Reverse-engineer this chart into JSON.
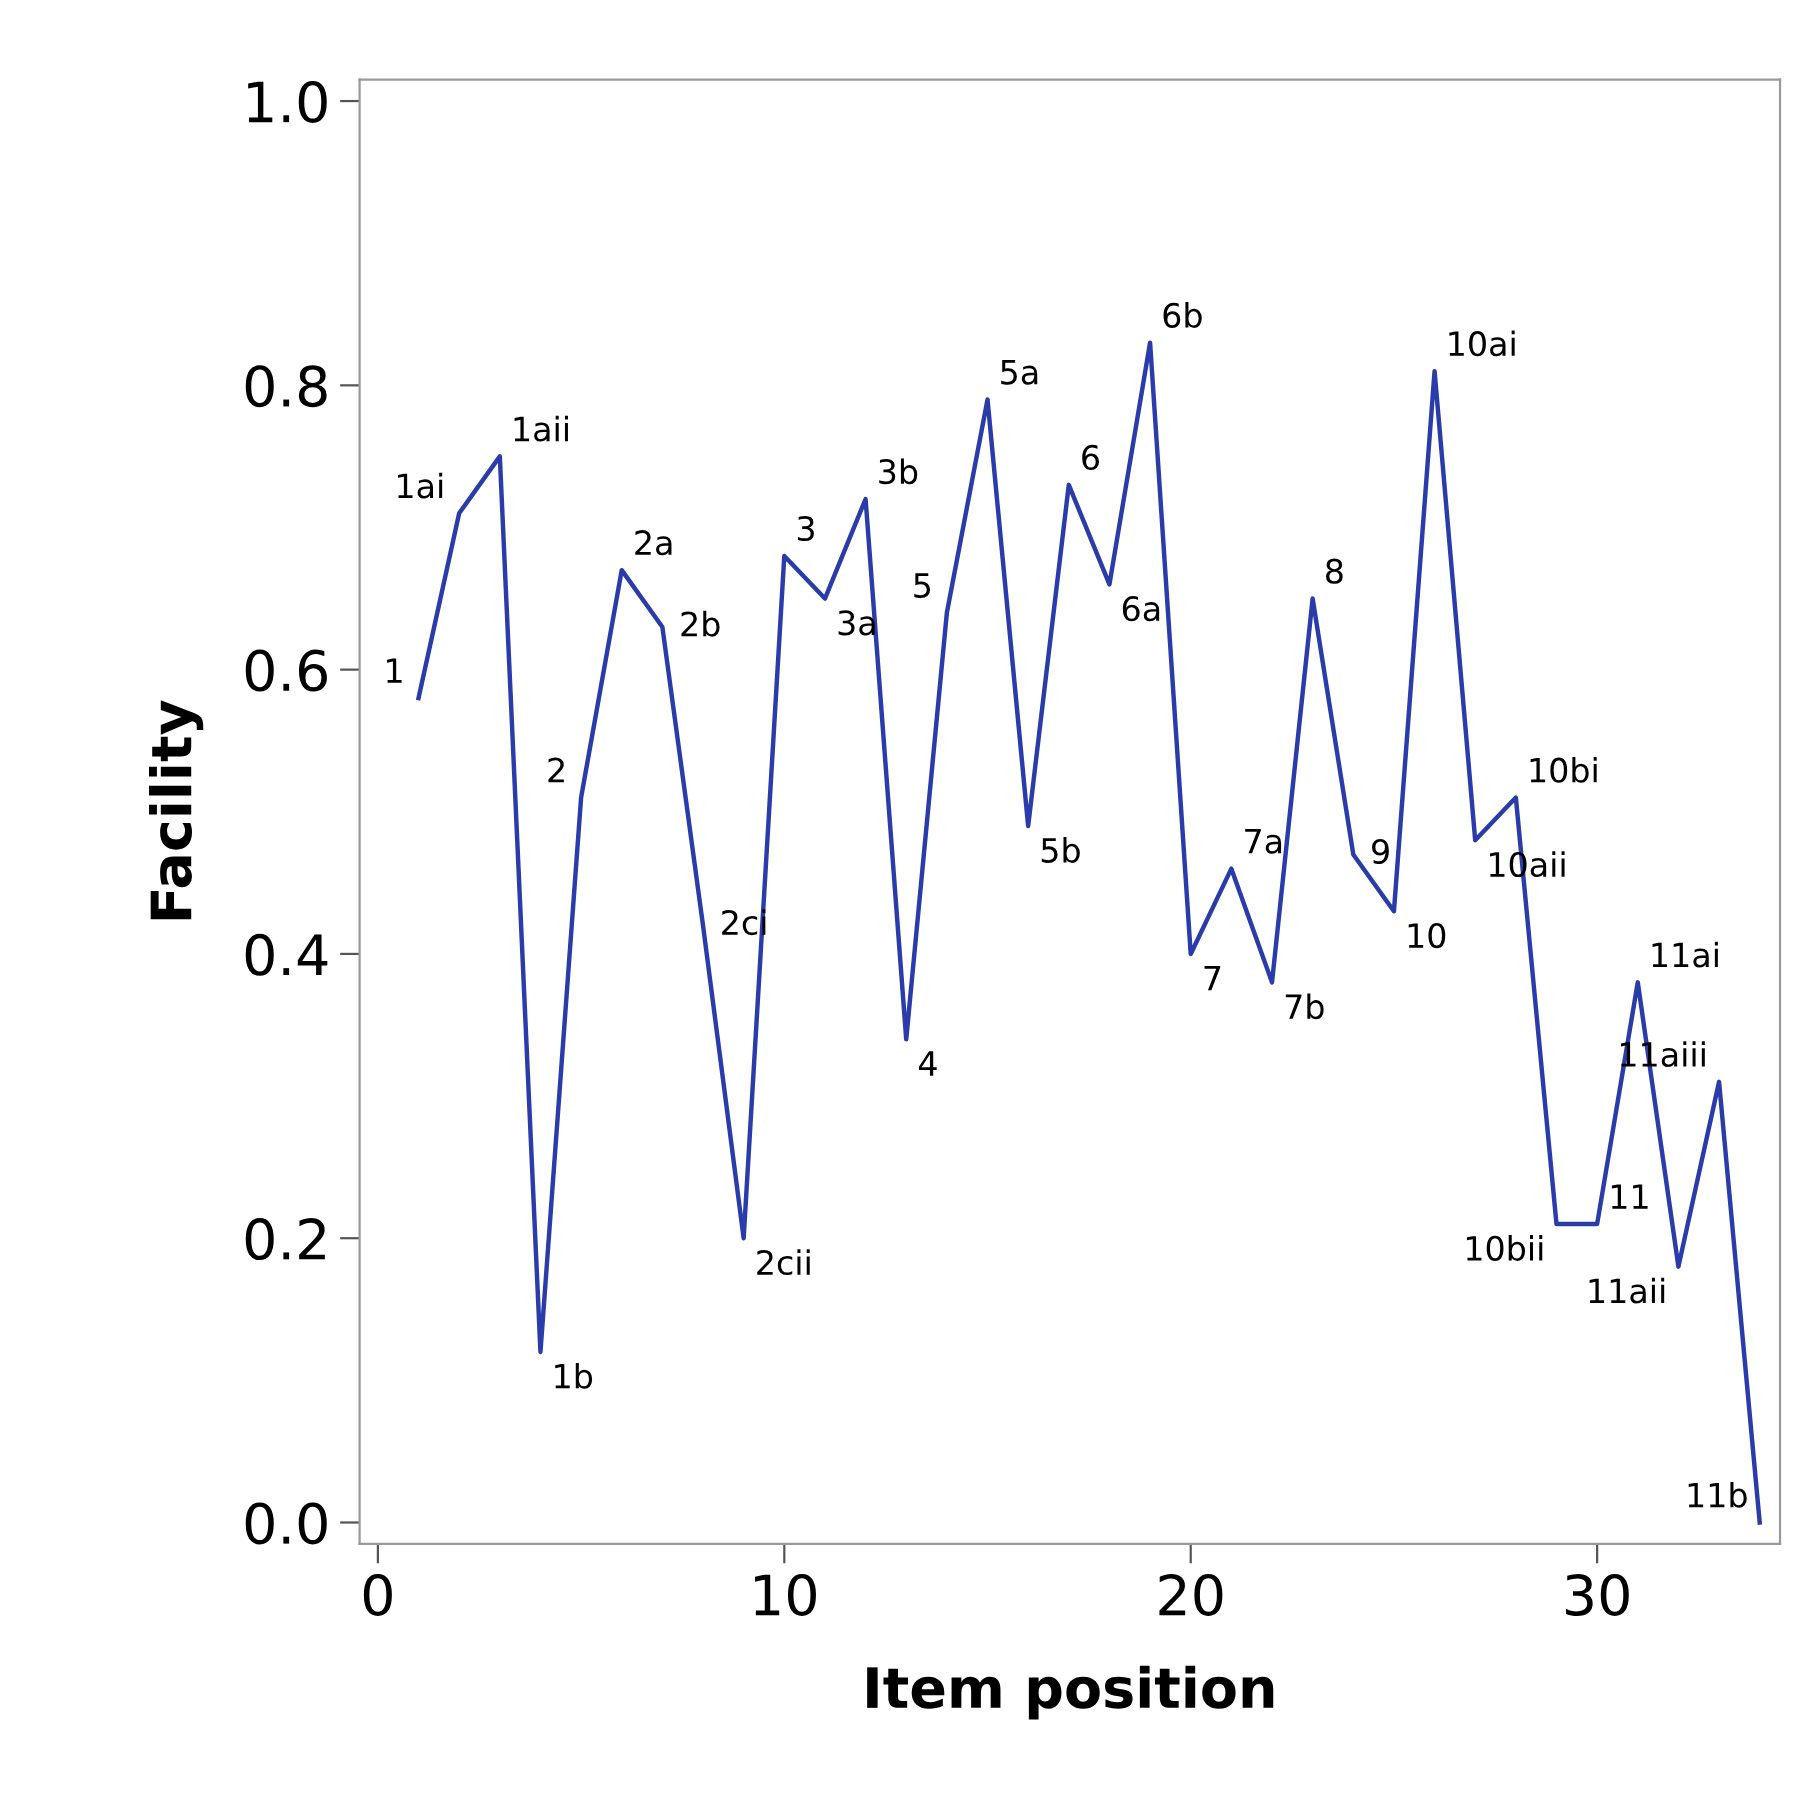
{
  "chart_data": {
    "type": "line",
    "xlabel": "Item position",
    "ylabel": "Facility",
    "x": [
      1,
      2,
      3,
      4,
      5,
      6,
      7,
      8,
      9,
      10,
      11,
      12,
      13,
      14,
      15,
      16,
      17,
      18,
      19,
      20,
      21,
      22,
      23,
      24,
      25,
      26,
      27,
      28,
      29,
      30,
      31,
      32,
      33,
      34
    ],
    "series": [
      {
        "color": "#2a3caa",
        "values": [
          0.58,
          0.71,
          0.75,
          0.12,
          0.51,
          0.67,
          0.63,
          0.42,
          0.2,
          0.68,
          0.65,
          0.72,
          0.34,
          0.64,
          0.79,
          0.49,
          0.73,
          0.66,
          0.83,
          0.4,
          0.46,
          0.38,
          0.65,
          0.47,
          0.43,
          0.81,
          0.48,
          0.51,
          0.21,
          0.21,
          0.38,
          0.18,
          0.31,
          0.0
        ]
      }
    ],
    "annotations": [
      {
        "text": "1",
        "x": 1,
        "y": 0.58
      },
      {
        "text": "1ai",
        "x": 2,
        "y": 0.71
      },
      {
        "text": "1aii",
        "x": 3,
        "y": 0.75
      },
      {
        "text": "1b",
        "x": 4,
        "y": 0.12
      },
      {
        "text": "2",
        "x": 5,
        "y": 0.51
      },
      {
        "text": "2a",
        "x": 6,
        "y": 0.67
      },
      {
        "text": "2b",
        "x": 7,
        "y": 0.63
      },
      {
        "text": "2ci",
        "x": 8,
        "y": 0.42
      },
      {
        "text": "2cii",
        "x": 9,
        "y": 0.2
      },
      {
        "text": "3",
        "x": 10,
        "y": 0.68
      },
      {
        "text": "3a",
        "x": 11,
        "y": 0.65
      },
      {
        "text": "3b",
        "x": 12,
        "y": 0.72
      },
      {
        "text": "4",
        "x": 13,
        "y": 0.34
      },
      {
        "text": "5",
        "x": 14,
        "y": 0.64
      },
      {
        "text": "5a",
        "x": 15,
        "y": 0.79
      },
      {
        "text": "5b",
        "x": 16,
        "y": 0.49
      },
      {
        "text": "6",
        "x": 17,
        "y": 0.73
      },
      {
        "text": "6a",
        "x": 18,
        "y": 0.66
      },
      {
        "text": "6b",
        "x": 19,
        "y": 0.83
      },
      {
        "text": "7",
        "x": 20,
        "y": 0.4
      },
      {
        "text": "7a",
        "x": 21,
        "y": 0.46
      },
      {
        "text": "7b",
        "x": 22,
        "y": 0.38
      },
      {
        "text": "8",
        "x": 23,
        "y": 0.65
      },
      {
        "text": "9",
        "x": 24,
        "y": 0.47
      },
      {
        "text": "10",
        "x": 25,
        "y": 0.43
      },
      {
        "text": "10ai",
        "x": 26,
        "y": 0.81
      },
      {
        "text": "10aii",
        "x": 27,
        "y": 0.48
      },
      {
        "text": "10bi",
        "x": 28,
        "y": 0.51
      },
      {
        "text": "10bii",
        "x": 29,
        "y": 0.21
      },
      {
        "text": "11",
        "x": 30,
        "y": 0.21
      },
      {
        "text": "11ai",
        "x": 31,
        "y": 0.38
      },
      {
        "text": "11aii",
        "x": 32,
        "y": 0.18
      },
      {
        "text": "11aiii",
        "x": 33,
        "y": 0.31
      },
      {
        "text": "11b",
        "x": 34,
        "y": 0.0
      }
    ],
    "xlim": [
      -0.45,
      34.5
    ],
    "ylim": [
      -0.015,
      1.015
    ],
    "xticks": [
      0,
      10,
      20,
      30
    ],
    "yticks": [
      {
        "value": 0,
        "label": "0.0"
      },
      {
        "value": 0.2,
        "label": "0.2"
      },
      {
        "value": 0.4,
        "label": "0.4"
      },
      {
        "value": 0.6,
        "label": "0.6"
      },
      {
        "value": 0.8,
        "label": "0.8"
      },
      {
        "value": 1,
        "label": "1.0"
      }
    ],
    "grid": false,
    "marker": "none",
    "line_style": "solid"
  }
}
